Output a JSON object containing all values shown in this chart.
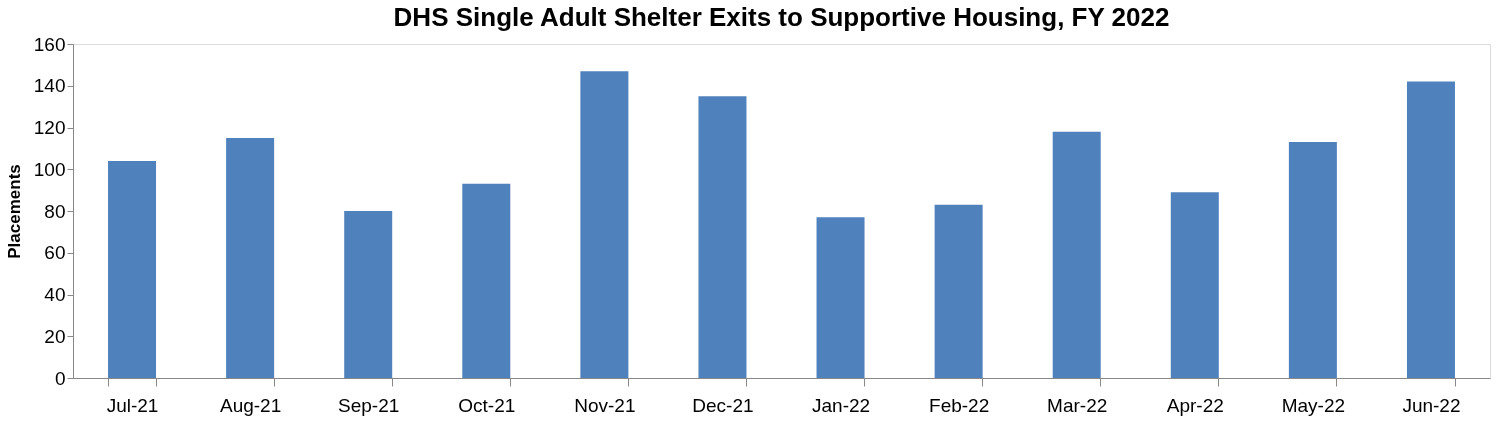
{
  "chart_data": {
    "type": "bar",
    "title": "DHS Single Adult Shelter Exits to Supportive Housing, FY 2022",
    "ylabel": "Placements",
    "categories": [
      "Jul-21",
      "Aug-21",
      "Sep-21",
      "Oct-21",
      "Nov-21",
      "Dec-21",
      "Jan-22",
      "Feb-22",
      "Mar-22",
      "Apr-22",
      "May-22",
      "Jun-22"
    ],
    "values": [
      104,
      115,
      80,
      93,
      147,
      135,
      77,
      83,
      118,
      89,
      113,
      142
    ],
    "color": "#4f81bd",
    "ylim": [
      0,
      160
    ],
    "yticks": [
      0,
      20,
      40,
      60,
      80,
      100,
      120,
      140,
      160
    ],
    "grid": false
  }
}
